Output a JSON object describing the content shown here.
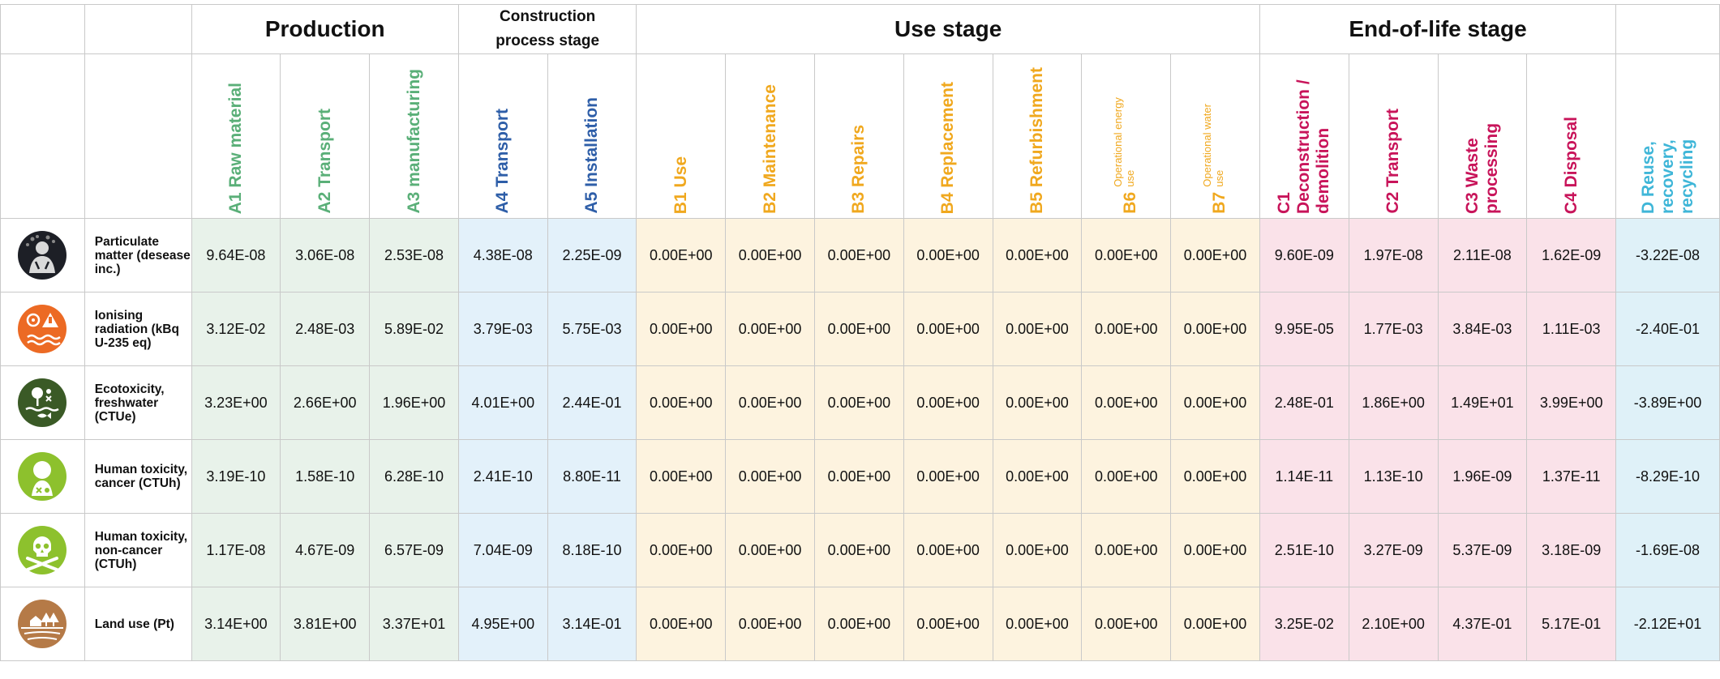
{
  "stages": {
    "production": "Production",
    "construction_line1": "Construction",
    "construction_line2": "process stage",
    "use": "Use stage",
    "end_of_life": "End-of-life stage"
  },
  "modules": {
    "a1": "A1 Raw material",
    "a2": "A2 Transport",
    "a3": "A3 manufacturing",
    "a4": "A4 Transport",
    "a5": "A5 Installation",
    "b1": "B1 Use",
    "b2": "B2 Maintenance",
    "b3": "B3 Repairs",
    "b4": "B4 Replacement",
    "b5": "B5 Refurbishment",
    "b6_code": "B6",
    "b6_label": "Operational energy use",
    "b7_code": "B7",
    "b7_label": "Operational water use",
    "c1": "C1 Deconstruction / demolition",
    "c2": "C2 Transport",
    "c3": "C3 Waste processing",
    "c4": "C4 Disposal",
    "d": "D Reuse, recovery, recycling"
  },
  "colors": {
    "production": "#5aaf78",
    "construction": "#2e5ea8",
    "use": "#f0a81e",
    "end_of_life": "#c8145a",
    "beyond": "#3fb6d8"
  },
  "rows": [
    {
      "icon": "particulate-matter-icon",
      "indicator": "Particulate matter (desease inc.)",
      "values": [
        "9.64E-08",
        "3.06E-08",
        "2.53E-08",
        "4.38E-08",
        "2.25E-09",
        "0.00E+00",
        "0.00E+00",
        "0.00E+00",
        "0.00E+00",
        "0.00E+00",
        "0.00E+00",
        "0.00E+00",
        "9.60E-09",
        "1.97E-08",
        "2.11E-08",
        "1.62E-09",
        "-3.22E-08"
      ]
    },
    {
      "icon": "ionising-radiation-icon",
      "indicator": "Ionising radiation (kBq U-235 eq)",
      "values": [
        "3.12E-02",
        "2.48E-03",
        "5.89E-02",
        "3.79E-03",
        "5.75E-03",
        "0.00E+00",
        "0.00E+00",
        "0.00E+00",
        "0.00E+00",
        "0.00E+00",
        "0.00E+00",
        "0.00E+00",
        "9.95E-05",
        "1.77E-03",
        "3.84E-03",
        "1.11E-03",
        "-2.40E-01"
      ]
    },
    {
      "icon": "ecotoxicity-icon",
      "indicator": "Ecotoxicity, freshwater (CTUe)",
      "values": [
        "3.23E+00",
        "2.66E+00",
        "1.96E+00",
        "4.01E+00",
        "2.44E-01",
        "0.00E+00",
        "0.00E+00",
        "0.00E+00",
        "0.00E+00",
        "0.00E+00",
        "0.00E+00",
        "0.00E+00",
        "2.48E-01",
        "1.86E+00",
        "1.49E+01",
        "3.99E+00",
        "-3.89E+00"
      ]
    },
    {
      "icon": "human-toxicity-cancer-icon",
      "indicator": "Human toxicity, cancer (CTUh)",
      "values": [
        "3.19E-10",
        "1.58E-10",
        "6.28E-10",
        "2.41E-10",
        "8.80E-11",
        "0.00E+00",
        "0.00E+00",
        "0.00E+00",
        "0.00E+00",
        "0.00E+00",
        "0.00E+00",
        "0.00E+00",
        "1.14E-11",
        "1.13E-10",
        "1.96E-09",
        "1.37E-11",
        "-8.29E-10"
      ]
    },
    {
      "icon": "skull-crossbones-icon",
      "indicator": "Human toxicity, non-cancer (CTUh)",
      "values": [
        "1.17E-08",
        "4.67E-09",
        "6.57E-09",
        "7.04E-09",
        "8.18E-10",
        "0.00E+00",
        "0.00E+00",
        "0.00E+00",
        "0.00E+00",
        "0.00E+00",
        "0.00E+00",
        "0.00E+00",
        "2.51E-10",
        "3.27E-09",
        "5.37E-09",
        "3.18E-09",
        "-1.69E-08"
      ]
    },
    {
      "icon": "land-use-icon",
      "indicator": "Land use (Pt)",
      "values": [
        "3.14E+00",
        "3.81E+00",
        "3.37E+01",
        "4.95E+00",
        "3.14E-01",
        "0.00E+00",
        "0.00E+00",
        "0.00E+00",
        "0.00E+00",
        "0.00E+00",
        "0.00E+00",
        "0.00E+00",
        "3.25E-02",
        "2.10E+00",
        "4.37E-01",
        "5.17E-01",
        "-2.12E+01"
      ]
    }
  ]
}
